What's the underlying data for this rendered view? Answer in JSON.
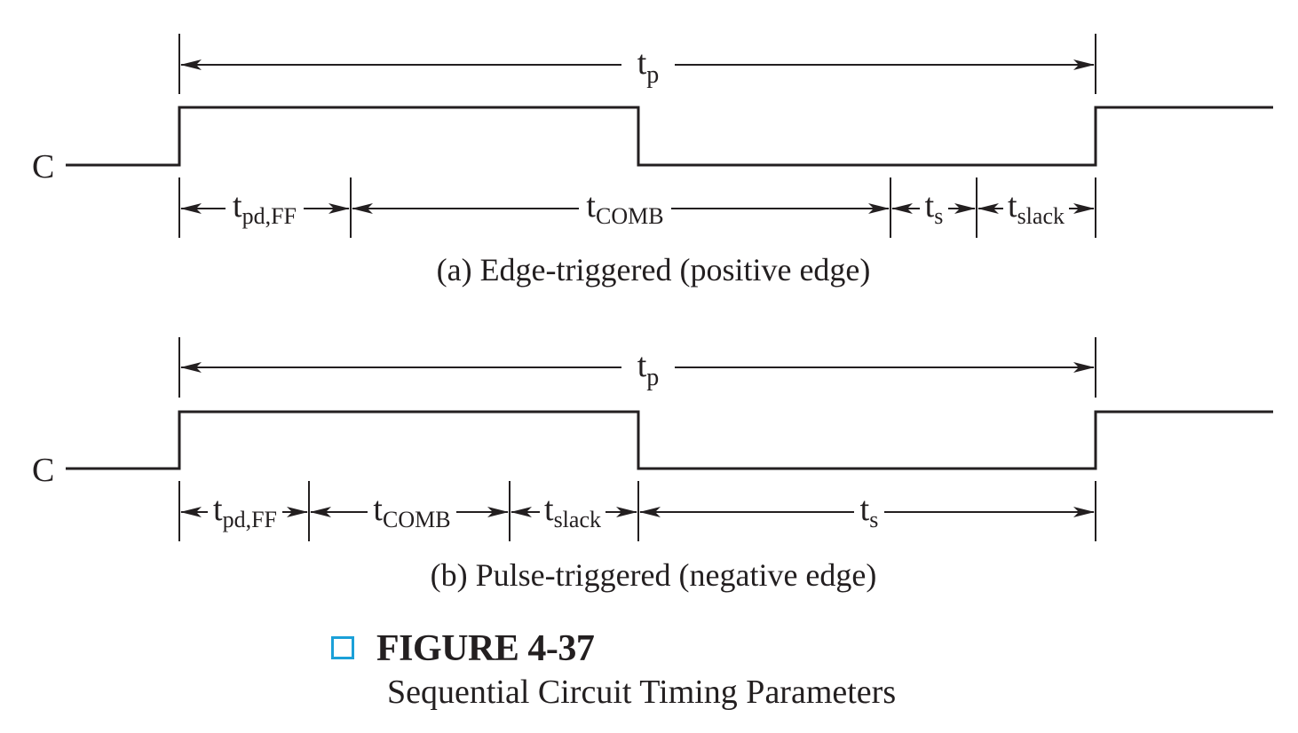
{
  "panels": [
    {
      "signal_label": "C",
      "period": {
        "main": "t",
        "sub": "p"
      },
      "segments": [
        {
          "main": "t",
          "sub": "pd,FF"
        },
        {
          "main": "t",
          "sub": "COMB"
        },
        {
          "main": "t",
          "sub": "s"
        },
        {
          "main": "t",
          "sub": "slack"
        }
      ],
      "caption": "(a) Edge-triggered (positive edge)"
    },
    {
      "signal_label": "C",
      "period": {
        "main": "t",
        "sub": "p"
      },
      "segments": [
        {
          "main": "t",
          "sub": "pd,FF"
        },
        {
          "main": "t",
          "sub": "COMB"
        },
        {
          "main": "t",
          "sub": "slack"
        },
        {
          "main": "t",
          "sub": "s"
        }
      ],
      "caption": "(b) Pulse-triggered (negative edge)"
    }
  ],
  "figure": {
    "title": "FIGURE 4-37",
    "subtitle": "Sequential Circuit Timing Parameters",
    "accent_color": "#1ba0d8",
    "line_color": "#231f20"
  }
}
